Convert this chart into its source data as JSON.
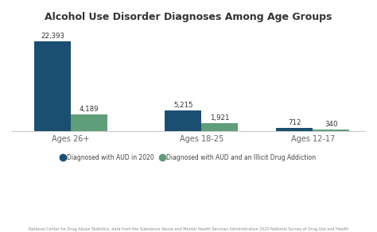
{
  "title": "Alcohol Use Disorder Diagnoses Among Age Groups",
  "categories": [
    "Ages 26+",
    "Ages 18-25",
    "Ages 12-17"
  ],
  "aud_values": [
    22393,
    5215,
    712
  ],
  "illicit_values": [
    4189,
    1921,
    340
  ],
  "aud_labels": [
    "22,393",
    "5,215",
    "712"
  ],
  "illicit_labels": [
    "4,189",
    "1,921",
    "340"
  ],
  "aud_color": "#1b4f72",
  "illicit_color": "#5f9e7a",
  "background_color": "#ffffff",
  "legend_aud": "Diagnosed with AUD in 2020",
  "legend_illicit": "Diagnosed with AUD and an Illicit Drug Addiction",
  "footnote": "National Center for Drug Abuse Statistics, data from the Substance Abuse and Mental Health Services Administration 2020 National Survey of Drug Use and Health",
  "ylim": [
    0,
    25000
  ],
  "bar_width": 0.28,
  "x_positions": [
    0.0,
    1.0,
    1.85
  ]
}
